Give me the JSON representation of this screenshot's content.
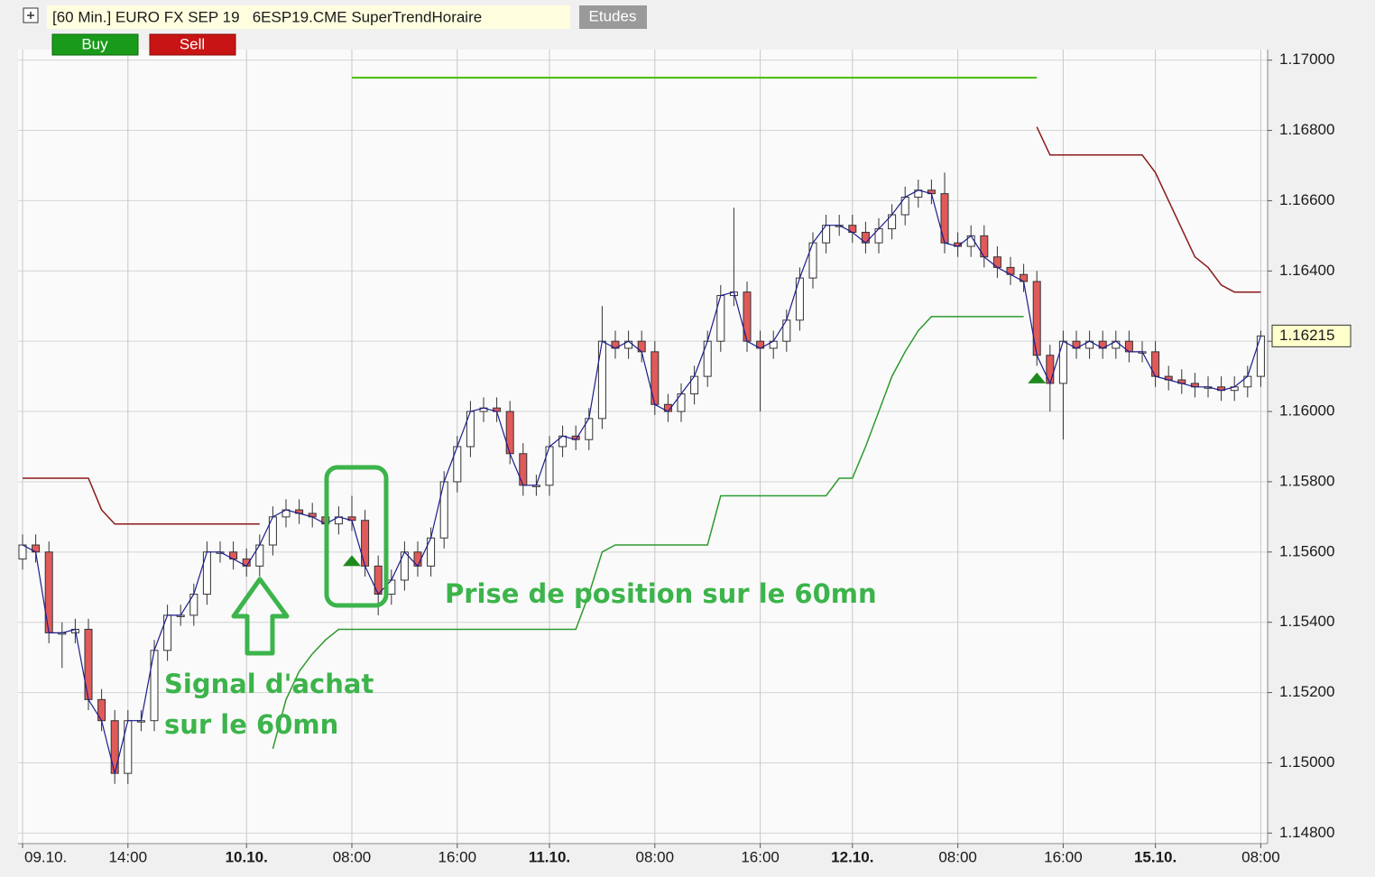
{
  "header": {
    "title": "[60 Min.] EURO FX SEP 19   6ESP19.CME SuperTrendHoraire",
    "studies": "Etudes",
    "buy": "Buy",
    "sell": "Sell"
  },
  "chart_data": {
    "type": "candlestick",
    "categories": [
      "09.10.",
      null,
      null,
      null,
      null,
      null,
      null,
      null,
      "14:00",
      null,
      null,
      null,
      null,
      null,
      null,
      null,
      null,
      "10.10.",
      null,
      null,
      null,
      null,
      null,
      null,
      null,
      "08:00",
      null,
      null,
      null,
      null,
      null,
      null,
      null,
      "16:00",
      null,
      null,
      null,
      null,
      null,
      null,
      "11.10.",
      null,
      null,
      null,
      null,
      null,
      null,
      null,
      "08:00",
      null,
      null,
      null,
      null,
      null,
      null,
      null,
      "16:00",
      null,
      null,
      null,
      null,
      null,
      null,
      "12.10.",
      null,
      null,
      null,
      null,
      null,
      null,
      null,
      "08:00",
      null,
      null,
      null,
      null,
      null,
      null,
      null,
      "16:00",
      null,
      null,
      null,
      null,
      null,
      null,
      "15.10.",
      null,
      null,
      null,
      null,
      null,
      null,
      null,
      "08:00"
    ],
    "bold_categories": [
      17,
      40,
      63,
      86
    ],
    "open": [
      1.1558,
      1.1562,
      1.156,
      1.1537,
      1.1537,
      1.1538,
      1.1518,
      1.1512,
      1.1497,
      1.1512,
      1.1512,
      1.1532,
      1.1542,
      1.1542,
      1.1548,
      1.156,
      1.156,
      1.1558,
      1.1556,
      1.1562,
      1.157,
      1.1572,
      1.1571,
      1.157,
      1.1568,
      1.157,
      1.1569,
      1.1556,
      1.1548,
      1.1552,
      1.156,
      1.1556,
      1.1564,
      1.158,
      1.159,
      1.16,
      1.1601,
      1.16,
      1.1588,
      1.1579,
      1.1579,
      1.159,
      1.1593,
      1.1592,
      1.1598,
      1.162,
      1.1618,
      1.162,
      1.1617,
      1.1602,
      1.16,
      1.1605,
      1.161,
      1.162,
      1.1633,
      1.1634,
      1.162,
      1.1618,
      1.162,
      1.1626,
      1.1638,
      1.1648,
      1.1653,
      1.1653,
      1.1651,
      1.1648,
      1.1652,
      1.1656,
      1.1661,
      1.1663,
      1.1662,
      1.1648,
      1.1647,
      1.165,
      1.1644,
      1.1641,
      1.1639,
      1.1637,
      1.1616,
      1.1608,
      1.162,
      1.1618,
      1.162,
      1.1618,
      1.162,
      1.1617,
      1.1617,
      1.161,
      1.1609,
      1.1608,
      1.1607,
      1.1607,
      1.1606,
      1.1607,
      1.161
    ],
    "high": [
      1.1565,
      1.1565,
      1.1563,
      1.154,
      1.1541,
      1.1541,
      1.1521,
      1.1515,
      1.1515,
      1.1515,
      1.1535,
      1.1545,
      1.1545,
      1.1551,
      1.1563,
      1.1563,
      1.1563,
      1.1561,
      1.1565,
      1.1573,
      1.1575,
      1.1575,
      1.1574,
      1.1573,
      1.1573,
      1.1576,
      1.1572,
      1.1559,
      1.1555,
      1.1563,
      1.1563,
      1.1567,
      1.1583,
      1.1593,
      1.1603,
      1.1604,
      1.1604,
      1.1603,
      1.1591,
      1.1582,
      1.1593,
      1.1596,
      1.1596,
      1.1601,
      1.163,
      1.1623,
      1.1623,
      1.1623,
      1.162,
      1.1605,
      1.1608,
      1.1613,
      1.1623,
      1.1636,
      1.1658,
      1.1637,
      1.1623,
      1.1623,
      1.1629,
      1.1641,
      1.1651,
      1.1656,
      1.1656,
      1.1656,
      1.1654,
      1.1655,
      1.1659,
      1.1664,
      1.1666,
      1.1666,
      1.1668,
      1.1651,
      1.1653,
      1.1653,
      1.1647,
      1.1644,
      1.1642,
      1.164,
      1.1619,
      1.1623,
      1.1623,
      1.1623,
      1.1623,
      1.1623,
      1.1623,
      1.162,
      1.162,
      1.1613,
      1.1612,
      1.1611,
      1.161,
      1.161,
      1.161,
      1.1613,
      1.1623
    ],
    "low": [
      1.1555,
      1.1557,
      1.1534,
      1.1527,
      1.1534,
      1.1515,
      1.1509,
      1.1494,
      1.1494,
      1.1509,
      1.1509,
      1.1529,
      1.1539,
      1.1539,
      1.1545,
      1.1557,
      1.1555,
      1.1553,
      1.1553,
      1.1559,
      1.1567,
      1.1568,
      1.1567,
      1.1565,
      1.1565,
      1.1566,
      1.1553,
      1.1542,
      1.1545,
      1.1549,
      1.1553,
      1.1553,
      1.1561,
      1.1577,
      1.1587,
      1.1597,
      1.1597,
      1.1585,
      1.1576,
      1.1576,
      1.1576,
      1.1587,
      1.1589,
      1.1589,
      1.1595,
      1.1615,
      1.1615,
      1.1614,
      1.1599,
      1.1597,
      1.1597,
      1.1602,
      1.1607,
      1.1617,
      1.163,
      1.1617,
      1.16,
      1.1615,
      1.1617,
      1.1623,
      1.1635,
      1.1645,
      1.165,
      1.1648,
      1.1645,
      1.1645,
      1.1649,
      1.1653,
      1.1658,
      1.1659,
      1.1645,
      1.1644,
      1.1644,
      1.1641,
      1.1638,
      1.1636,
      1.1634,
      1.1613,
      1.16,
      1.1592,
      1.1615,
      1.1615,
      1.1615,
      1.1615,
      1.1614,
      1.1614,
      1.1607,
      1.1606,
      1.1605,
      1.1604,
      1.1604,
      1.1603,
      1.1603,
      1.1604,
      1.1607
    ],
    "close": [
      1.1562,
      1.156,
      1.1537,
      1.1537,
      1.1538,
      1.1518,
      1.1512,
      1.1497,
      1.1512,
      1.1512,
      1.1532,
      1.1542,
      1.1542,
      1.1548,
      1.156,
      1.156,
      1.1558,
      1.1556,
      1.1562,
      1.157,
      1.1572,
      1.1571,
      1.157,
      1.1568,
      1.157,
      1.1569,
      1.1556,
      1.1548,
      1.1552,
      1.156,
      1.1556,
      1.1564,
      1.158,
      1.159,
      1.16,
      1.1601,
      1.16,
      1.1588,
      1.1579,
      1.1579,
      1.159,
      1.1593,
      1.1592,
      1.1598,
      1.162,
      1.1618,
      1.162,
      1.1617,
      1.1602,
      1.16,
      1.1605,
      1.161,
      1.162,
      1.1633,
      1.1634,
      1.162,
      1.1618,
      1.162,
      1.1626,
      1.1638,
      1.1648,
      1.1653,
      1.1653,
      1.1651,
      1.1648,
      1.1652,
      1.1656,
      1.1661,
      1.1663,
      1.1662,
      1.1648,
      1.1647,
      1.165,
      1.1644,
      1.1641,
      1.1639,
      1.1637,
      1.1616,
      1.1608,
      1.162,
      1.1618,
      1.162,
      1.1618,
      1.162,
      1.1617,
      1.1617,
      1.161,
      1.1609,
      1.1608,
      1.1607,
      1.1607,
      1.1606,
      1.1607,
      1.161,
      1.16215
    ],
    "up_color": "#ffffff",
    "down_color": "#e05a5a",
    "candle_outline": "#333333",
    "close_line_color": "#1c1c8c",
    "series": [
      {
        "color": "#8b1a1a",
        "values": [
          1.1581,
          1.1581,
          1.1581,
          1.1581,
          1.1581,
          1.1581,
          1.1572,
          1.1568,
          1.1568,
          1.1568,
          1.1568,
          1.1568,
          1.1568,
          1.1568,
          1.1568,
          1.1568,
          1.1568,
          1.1568,
          1.1568,
          null,
          null,
          null,
          null,
          null,
          null,
          null,
          null,
          null,
          null,
          null,
          null,
          null,
          null,
          null,
          null,
          null,
          null,
          null,
          null,
          null,
          null,
          null,
          null,
          null,
          null,
          null,
          null,
          null,
          null,
          null,
          null,
          null,
          null,
          null,
          null,
          null,
          null,
          null,
          null,
          null,
          null,
          null,
          null,
          null,
          null,
          null,
          null,
          null,
          null,
          null,
          null,
          null,
          null,
          null,
          null,
          null,
          null,
          1.1681,
          1.1673,
          1.1673,
          1.1673,
          1.1673,
          1.1673,
          1.1673,
          1.1673,
          1.1673,
          1.1668,
          1.166,
          1.1652,
          1.1644,
          1.1641,
          1.1636,
          1.1634,
          1.1634,
          1.1634
        ]
      },
      {
        "color": "#2e9a2e",
        "values": [
          null,
          null,
          null,
          null,
          null,
          null,
          null,
          null,
          null,
          null,
          null,
          null,
          null,
          null,
          null,
          null,
          null,
          null,
          null,
          1.1504,
          1.1518,
          1.1526,
          1.1531,
          1.1535,
          1.1538,
          1.1538,
          1.1538,
          1.1538,
          1.1538,
          1.1538,
          1.1538,
          1.1538,
          1.1538,
          1.1538,
          1.1538,
          1.1538,
          1.1538,
          1.1538,
          1.1538,
          1.1538,
          1.1538,
          1.1538,
          1.1538,
          1.1548,
          1.156,
          1.1562,
          1.1562,
          1.1562,
          1.1562,
          1.1562,
          1.1562,
          1.1562,
          1.1562,
          1.1576,
          1.1576,
          1.1576,
          1.1576,
          1.1576,
          1.1576,
          1.1576,
          1.1576,
          1.1576,
          1.1581,
          1.1581,
          1.159,
          1.16,
          1.161,
          1.1617,
          1.1623,
          1.1627,
          1.1627,
          1.1627,
          1.1627,
          1.1627,
          1.1627,
          1.1627,
          1.1627,
          null,
          null,
          null,
          null,
          null,
          null,
          null,
          null,
          null,
          null,
          null,
          null,
          null,
          null,
          null,
          null,
          null,
          null
        ]
      }
    ],
    "hline": {
      "value": 1.1695,
      "x": [
        25,
        77
      ],
      "color": "#44bb00"
    },
    "signals": [
      {
        "index": 25,
        "value": 1.1556
      },
      {
        "index": 77,
        "value": 1.1608
      }
    ],
    "signal_color": "#1e8a1e",
    "last_price": 1.16215,
    "ylim": [
      1.1477,
      1.1703
    ],
    "yticks": [
      {
        "value": 1.148,
        "label": "1.14800"
      },
      {
        "value": 1.15,
        "label": "1.15000"
      },
      {
        "value": 1.152,
        "label": "1.15200"
      },
      {
        "value": 1.154,
        "label": "1.15400"
      },
      {
        "value": 1.156,
        "label": "1.15600"
      },
      {
        "value": 1.158,
        "label": "1.15800"
      },
      {
        "value": 1.16,
        "label": "1.16000"
      },
      {
        "value": 1.162,
        "label": "1.16200"
      },
      {
        "value": 1.164,
        "label": "1.16400"
      },
      {
        "value": 1.166,
        "label": "1.16600"
      },
      {
        "value": 1.168,
        "label": "1.16800"
      },
      {
        "value": 1.17,
        "label": "1.17000"
      }
    ],
    "grid": true,
    "annotations": [
      "Signal d'achat",
      "sur le 60mn",
      "Prise de position sur le 60mn"
    ]
  }
}
